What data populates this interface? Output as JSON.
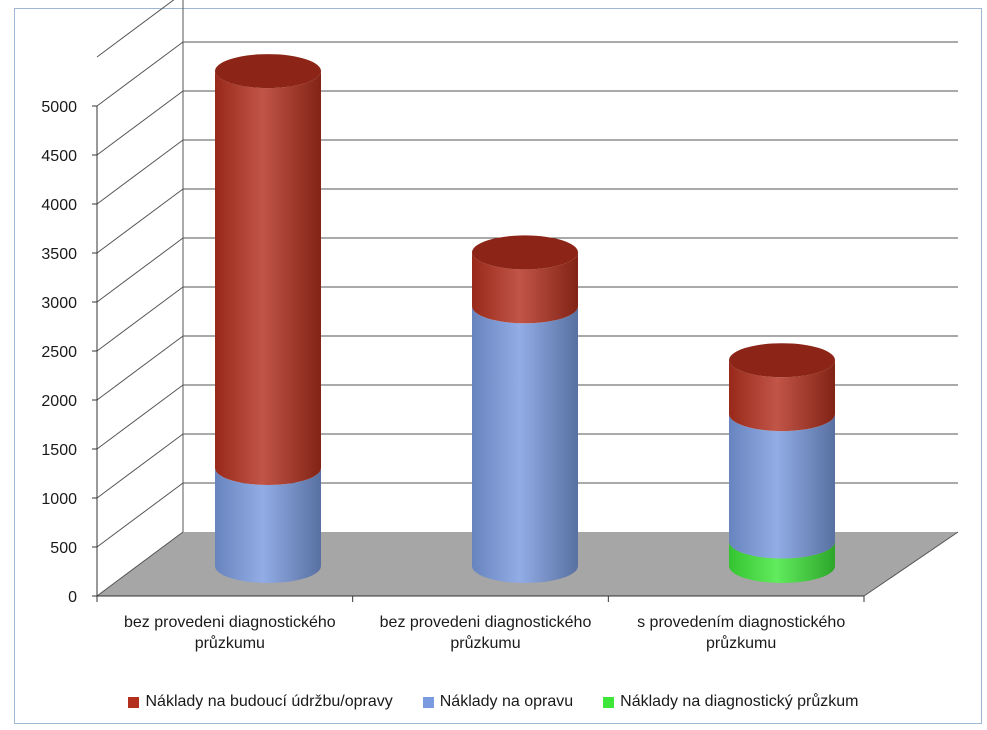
{
  "chart_data": {
    "type": "bar",
    "categories": [
      [
        "bez provedeni diagnostického",
        "průzkumu"
      ],
      [
        "bez provedeni diagnostického",
        "průzkumu"
      ],
      [
        "s provedením diagnostického",
        "průzkumu"
      ]
    ],
    "series": [
      {
        "name": "Náklady na diagnostický průzkum",
        "color": "#3ee63a",
        "values": [
          0,
          0,
          250
        ]
      },
      {
        "name": "Náklady na opravu",
        "color": "#7a9be0",
        "values": [
          1000,
          2650,
          1300
        ]
      },
      {
        "name": "Náklady na budoucí údržbu/opravy",
        "color": "#b3301e",
        "values": [
          4050,
          550,
          550
        ]
      }
    ],
    "legend_order": [
      2,
      1,
      0
    ],
    "yticks": [
      "0",
      "500",
      "1000",
      "1500",
      "2000",
      "2500",
      "3000",
      "3500",
      "4000",
      "4500",
      "5000"
    ],
    "ylim": [
      0,
      5000
    ],
    "gridlines": true,
    "legend_position": "bottom",
    "stacked": true,
    "shape": "cylinder"
  }
}
